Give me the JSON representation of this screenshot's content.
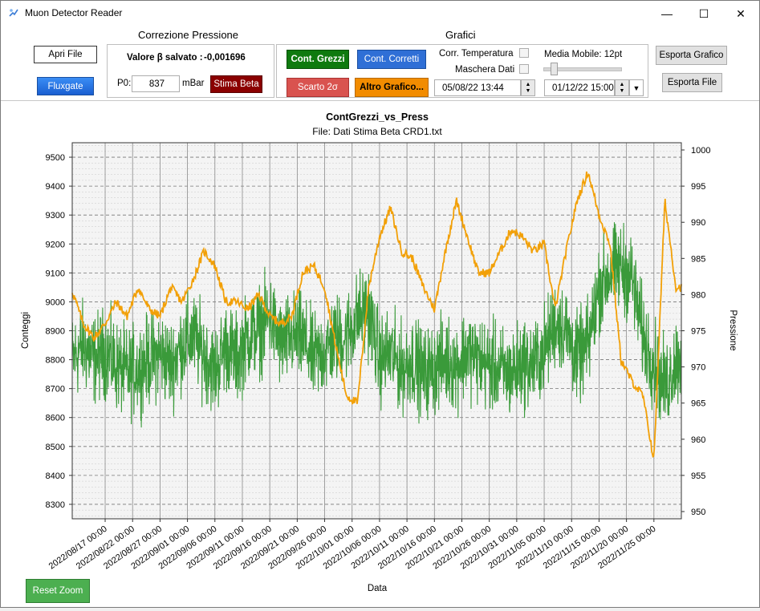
{
  "window": {
    "title": "Muon Detector Reader",
    "minimize_glyph": "—",
    "maximize_glyph": "☐",
    "close_glyph": "✕"
  },
  "toolbar": {
    "open_file": "Apri File",
    "fluxgate": "Fluxgate",
    "pressure_group": {
      "title": "Correzione Pressione",
      "beta_label": "Valore β salvato :",
      "beta_value": "-0,001696",
      "p0_label": "P0:",
      "p0_value": "837",
      "unit": "mBar",
      "estimate_beta": "Stima Beta"
    },
    "charts_group": {
      "title": "Grafici",
      "raw_counts": "Cont. Grezzi",
      "corrected_counts": "Cont. Corretti",
      "discard_2sigma": "Scarto 2σ",
      "other_chart": "Altro Grafico...",
      "temp_corr": "Corr. Temperatura",
      "data_mask": "Maschera Dati",
      "moving_average": "Media Mobile: 12pt",
      "moving_average_fraction": 0.1,
      "start_date": "05/08/22 13:44",
      "end_date": "01/12/22 15:00"
    },
    "export_chart": "Esporta Grafico",
    "export_file": "Esporta File"
  },
  "reset_zoom": "Reset Zoom",
  "colors": {
    "accent_green": "#0f7a0f",
    "accent_blue": "#2f6fd6",
    "accent_red": "#8b0000",
    "counts_series": "#3a9a3a",
    "pressure_series": "#f2a007"
  },
  "chart_data": {
    "type": "line",
    "title": "ContGrezzi_vs_Press",
    "subtitle": "File: Dati Stima Beta CRD1.txt",
    "xlabel": "Data",
    "ylabel": "Conteggi",
    "y2label": "Pressione",
    "xlim": [
      "2022-08-11",
      "2022-11-30"
    ],
    "ylim": [
      8250,
      9550
    ],
    "y2lim": [
      949,
      1001
    ],
    "yticks": [
      8300,
      8400,
      8500,
      8600,
      8700,
      8800,
      8900,
      9000,
      9100,
      9200,
      9300,
      9400,
      9500
    ],
    "y2ticks": [
      950,
      955,
      960,
      965,
      970,
      975,
      980,
      985,
      990,
      995,
      1000
    ],
    "xticks": [
      "2022/08/17 00:00",
      "2022/08/22 00:00",
      "2022/08/27 00:00",
      "2022/09/01 00:00",
      "2022/09/06 00:00",
      "2022/09/11 00:00",
      "2022/09/16 00:00",
      "2022/09/21 00:00",
      "2022/09/26 00:00",
      "2022/10/01 00:00",
      "2022/10/06 00:00",
      "2022/10/11 00:00",
      "2022/10/16 00:00",
      "2022/10/21 00:00",
      "2022/10/26 00:00",
      "2022/10/31 00:00",
      "2022/11/05 00:00",
      "2022/11/10 00:00",
      "2022/11/15 00:00",
      "2022/11/20 00:00",
      "2022/11/25 00:00"
    ],
    "grid": true,
    "series": [
      {
        "axis": "left",
        "x": [
          "2022-08-11",
          "2022-08-13",
          "2022-08-15",
          "2022-08-17",
          "2022-08-19",
          "2022-08-21",
          "2022-08-23",
          "2022-08-25",
          "2022-08-27",
          "2022-08-29",
          "2022-08-31",
          "2022-09-02",
          "2022-09-04",
          "2022-09-06",
          "2022-09-08",
          "2022-09-10",
          "2022-09-12",
          "2022-09-14",
          "2022-09-16",
          "2022-09-18",
          "2022-09-20",
          "2022-09-22",
          "2022-09-24",
          "2022-09-26",
          "2022-09-28",
          "2022-09-30",
          "2022-10-02",
          "2022-10-04",
          "2022-10-06",
          "2022-10-08",
          "2022-10-10",
          "2022-10-12",
          "2022-10-14",
          "2022-10-16",
          "2022-10-18",
          "2022-10-20",
          "2022-10-22",
          "2022-10-24",
          "2022-10-26",
          "2022-10-28",
          "2022-10-30",
          "2022-11-01",
          "2022-11-03",
          "2022-11-05",
          "2022-11-07",
          "2022-11-09",
          "2022-11-11",
          "2022-11-13",
          "2022-11-15",
          "2022-11-17",
          "2022-11-19",
          "2022-11-21",
          "2022-11-23",
          "2022-11-25",
          "2022-11-27",
          "2022-11-29"
        ],
        "values": [
          8800,
          8850,
          8800,
          8830,
          8780,
          8750,
          8770,
          8800,
          8820,
          8780,
          8850,
          8880,
          8820,
          8760,
          8850,
          8800,
          8880,
          8900,
          8950,
          8850,
          8880,
          8870,
          8800,
          8830,
          8870,
          8880,
          8950,
          8970,
          8800,
          8820,
          8770,
          8800,
          8750,
          8770,
          8800,
          8780,
          8830,
          8800,
          8780,
          8760,
          8750,
          8790,
          8780,
          8830,
          8930,
          8900,
          8800,
          8850,
          9050,
          9100,
          9120,
          9080,
          8880,
          8790,
          8700,
          8800
        ]
      },
      {
        "axis": "right",
        "x": [
          "2022-08-11",
          "2022-08-13",
          "2022-08-15",
          "2022-08-17",
          "2022-08-19",
          "2022-08-21",
          "2022-08-23",
          "2022-08-25",
          "2022-08-27",
          "2022-08-29",
          "2022-08-31",
          "2022-09-02",
          "2022-09-04",
          "2022-09-06",
          "2022-09-08",
          "2022-09-10",
          "2022-09-12",
          "2022-09-14",
          "2022-09-16",
          "2022-09-18",
          "2022-09-20",
          "2022-09-22",
          "2022-09-24",
          "2022-09-26",
          "2022-09-28",
          "2022-09-30",
          "2022-10-02",
          "2022-10-04",
          "2022-10-06",
          "2022-10-08",
          "2022-10-10",
          "2022-10-12",
          "2022-10-14",
          "2022-10-16",
          "2022-10-18",
          "2022-10-20",
          "2022-10-22",
          "2022-10-24",
          "2022-10-26",
          "2022-10-28",
          "2022-10-30",
          "2022-11-01",
          "2022-11-03",
          "2022-11-05",
          "2022-11-07",
          "2022-11-09",
          "2022-11-11",
          "2022-11-13",
          "2022-11-15",
          "2022-11-17",
          "2022-11-19",
          "2022-11-21",
          "2022-11-23",
          "2022-11-25",
          "2022-11-27",
          "2022-11-29"
        ],
        "values": [
          980.5,
          976,
          974,
          976,
          979,
          977,
          981,
          978,
          977,
          981,
          979,
          982,
          986,
          984,
          979,
          979,
          978,
          980,
          977,
          976,
          977,
          983,
          984,
          981,
          973,
          966,
          965,
          981,
          988,
          992,
          986,
          985,
          981,
          978,
          986,
          993,
          988,
          983,
          983,
          986,
          989,
          988,
          986,
          987,
          978,
          986,
          993,
          997,
          991,
          987,
          971,
          968,
          966,
          957,
          993,
          981
        ]
      }
    ]
  }
}
